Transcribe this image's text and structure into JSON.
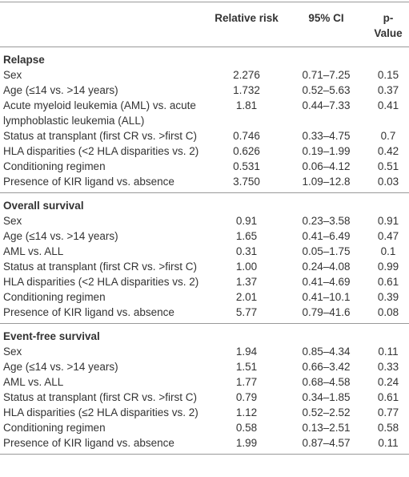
{
  "table": {
    "header": [
      "Relative risk",
      "95% CI",
      "p-Value"
    ],
    "sections": [
      {
        "name": "Relapse",
        "rows": [
          [
            "Sex",
            "2.276",
            "0.71–7.25",
            "0.15"
          ],
          [
            "Age (≤14 vs. >14 years)",
            "1.732",
            "0.52–5.63",
            "0.37"
          ],
          [
            "Acute myeloid leukemia (AML) vs. acute lymphoblastic leukemia (ALL)",
            "1.81",
            "0.44–7.33",
            "0.41"
          ],
          [
            "Status at transplant (first CR vs. >first C)",
            "0.746",
            "0.33–4.75",
            "0.7"
          ],
          [
            "HLA disparities (<2 HLA disparities vs. 2)",
            "0.626",
            "0.19–1.99",
            "0.42"
          ],
          [
            "Conditioning regimen",
            "0.531",
            "0.06–4.12",
            "0.51"
          ],
          [
            "Presence of KIR ligand vs. absence",
            "3.750",
            "1.09–12.8",
            "0.03"
          ]
        ]
      },
      {
        "name": "Overall survival",
        "rows": [
          [
            "Sex",
            "0.91",
            "0.23–3.58",
            "0.91"
          ],
          [
            "Age (≤14 vs. >14 years)",
            "1.65",
            "0.41–6.49",
            "0.47"
          ],
          [
            "AML vs. ALL",
            "0.31",
            "0.05–1.75",
            "0.1"
          ],
          [
            "Status at transplant (first CR vs. >first C)",
            "1.00",
            "0.24–4.08",
            "0.99"
          ],
          [
            "HLA disparities (<2 HLA disparities vs. 2)",
            "1.37",
            "0.41–4.69",
            "0.61"
          ],
          [
            "Conditioning regimen",
            "2.01",
            "0.41–10.1",
            "0.39"
          ],
          [
            "Presence of KIR ligand vs. absence",
            "5.77",
            "0.79–41.6",
            "0.08"
          ]
        ]
      },
      {
        "name": "Event-free survival",
        "rows": [
          [
            "Sex",
            "1.94",
            "0.85–4.34",
            "0.11"
          ],
          [
            "Age (≤14 vs. >14 years)",
            "1.51",
            "0.66–3.42",
            "0.33"
          ],
          [
            "AML vs. ALL",
            "1.77",
            "0.68–4.58",
            "0.24"
          ],
          [
            "Status at transplant (first CR vs. >first C)",
            "0.79",
            "0.34–1.85",
            "0.61"
          ],
          [
            "HLA disparities (≤2 HLA disparities vs. 2)",
            "1.12",
            "0.52–2.52",
            "0.77"
          ],
          [
            "Conditioning regimen",
            "0.58",
            "0.13–2.51",
            "0.58"
          ],
          [
            "Presence of KIR ligand vs. absence",
            "1.99",
            "0.87–4.57",
            "0.11"
          ]
        ]
      }
    ]
  }
}
